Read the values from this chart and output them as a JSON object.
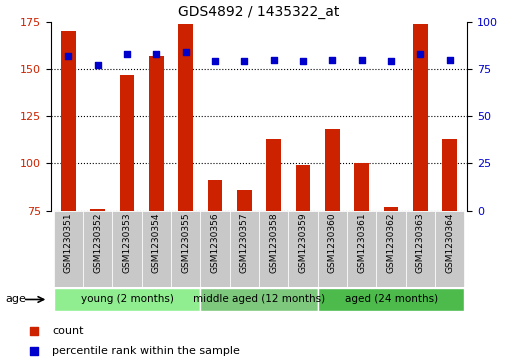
{
  "title": "GDS4892 / 1435322_at",
  "samples": [
    "GSM1230351",
    "GSM1230352",
    "GSM1230353",
    "GSM1230354",
    "GSM1230355",
    "GSM1230356",
    "GSM1230357",
    "GSM1230358",
    "GSM1230359",
    "GSM1230360",
    "GSM1230361",
    "GSM1230362",
    "GSM1230363",
    "GSM1230364"
  ],
  "counts": [
    170,
    76,
    147,
    157,
    174,
    91,
    86,
    113,
    99,
    118,
    100,
    77,
    174,
    113
  ],
  "percentiles": [
    82,
    77,
    83,
    83,
    84,
    79,
    79,
    80,
    79,
    80,
    80,
    79,
    83,
    80
  ],
  "groups": [
    {
      "label": "young (2 months)",
      "start": 0,
      "end": 5,
      "color": "#90EE90"
    },
    {
      "label": "middle aged (12 months)",
      "start": 5,
      "end": 9,
      "color": "#7EC87E"
    },
    {
      "label": "aged (24 months)",
      "start": 9,
      "end": 14,
      "color": "#4CBB4C"
    }
  ],
  "ylim_left": [
    75,
    175
  ],
  "ylim_right": [
    0,
    100
  ],
  "yticks_left": [
    75,
    100,
    125,
    150,
    175
  ],
  "yticks_right": [
    0,
    25,
    50,
    75,
    100
  ],
  "bar_color": "#CC2200",
  "dot_color": "#0000CC",
  "background_color": "#FFFFFF",
  "bar_bg_color": "#C8C8C8",
  "age_label": "age"
}
